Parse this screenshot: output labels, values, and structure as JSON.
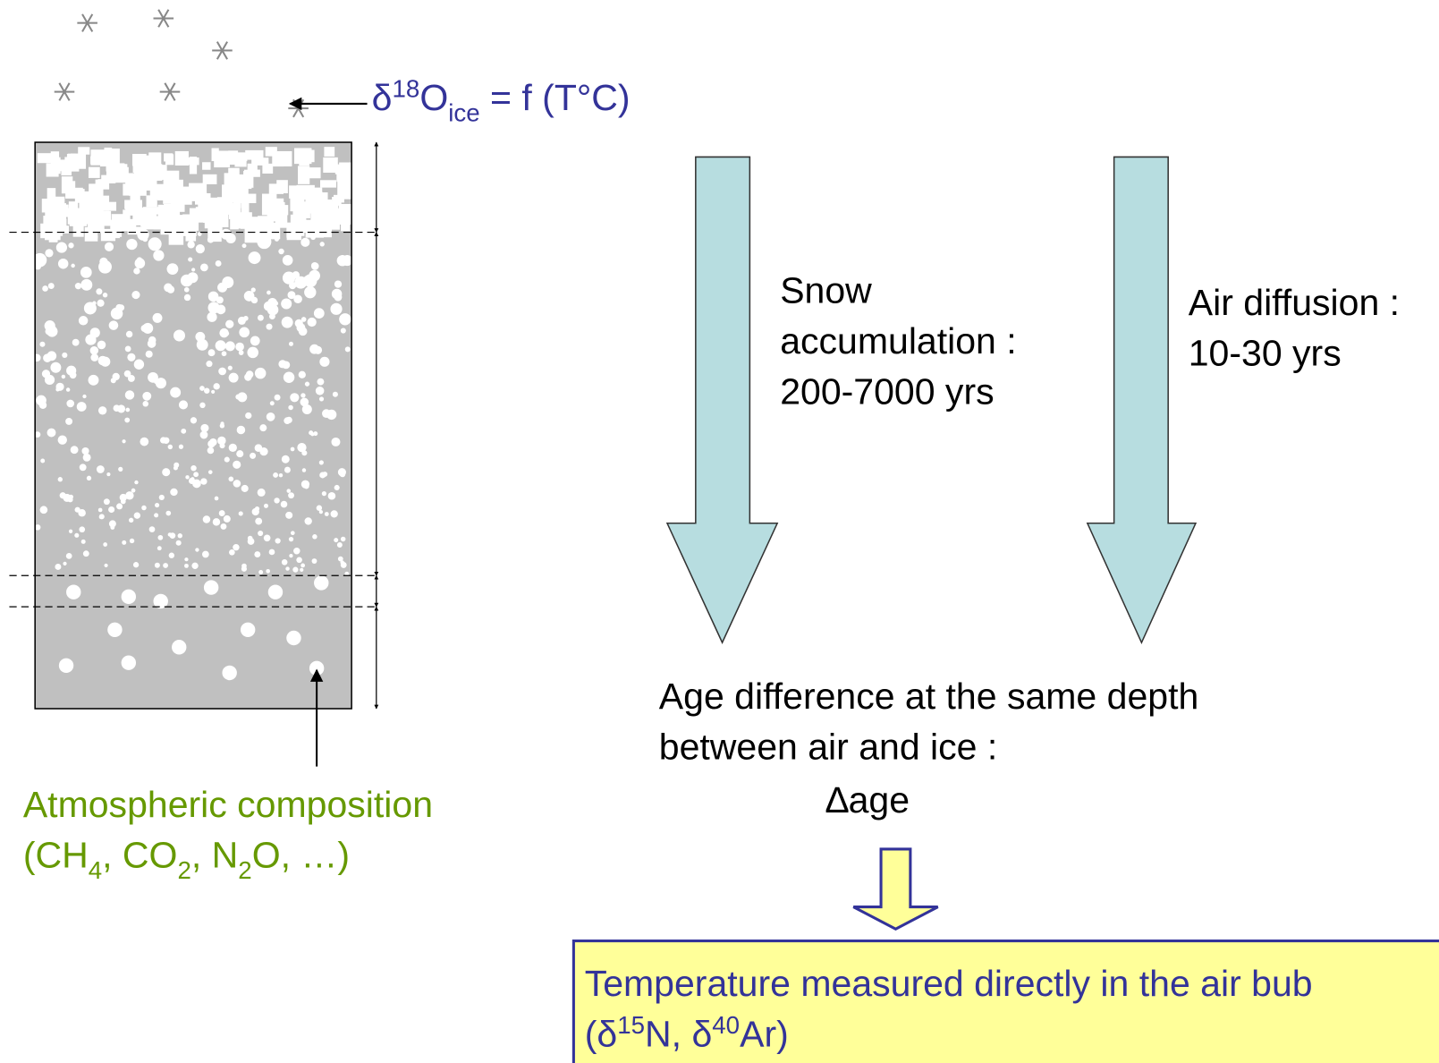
{
  "ice_formula": [
    {
      "text": "δ"
    },
    {
      "sup": "18"
    },
    {
      "text": "O"
    },
    {
      "sub": "ice"
    },
    {
      "text": " = f (T°C)"
    }
  ],
  "atmospheric_composition": {
    "title": "Atmospheric composition",
    "species": [
      {
        "text": "(CH"
      },
      {
        "sub": "4"
      },
      {
        "text": ", CO"
      },
      {
        "sub": "2"
      },
      {
        "text": ", N"
      },
      {
        "sub": "2"
      },
      {
        "text": "O, …)"
      }
    ]
  },
  "snow_accumulation": [
    "Snow",
    "accumulation :",
    "200-7000 yrs"
  ],
  "air_diffusion": [
    "Air diffusion :",
    "10-30 yrs"
  ],
  "age_difference": {
    "lines": [
      "Age difference at the same depth",
      "between air and ice  :"
    ],
    "symbol": "∆age"
  },
  "temperature_box": {
    "line1": "Temperature measured directly in the air bub",
    "line2": [
      {
        "text": "("
      },
      {
        "text": "δ"
      },
      {
        "sup": "15"
      },
      {
        "text": "N, "
      },
      {
        "text": "δ"
      },
      {
        "sup": "40"
      },
      {
        "text": "Ar)"
      }
    ]
  }
}
